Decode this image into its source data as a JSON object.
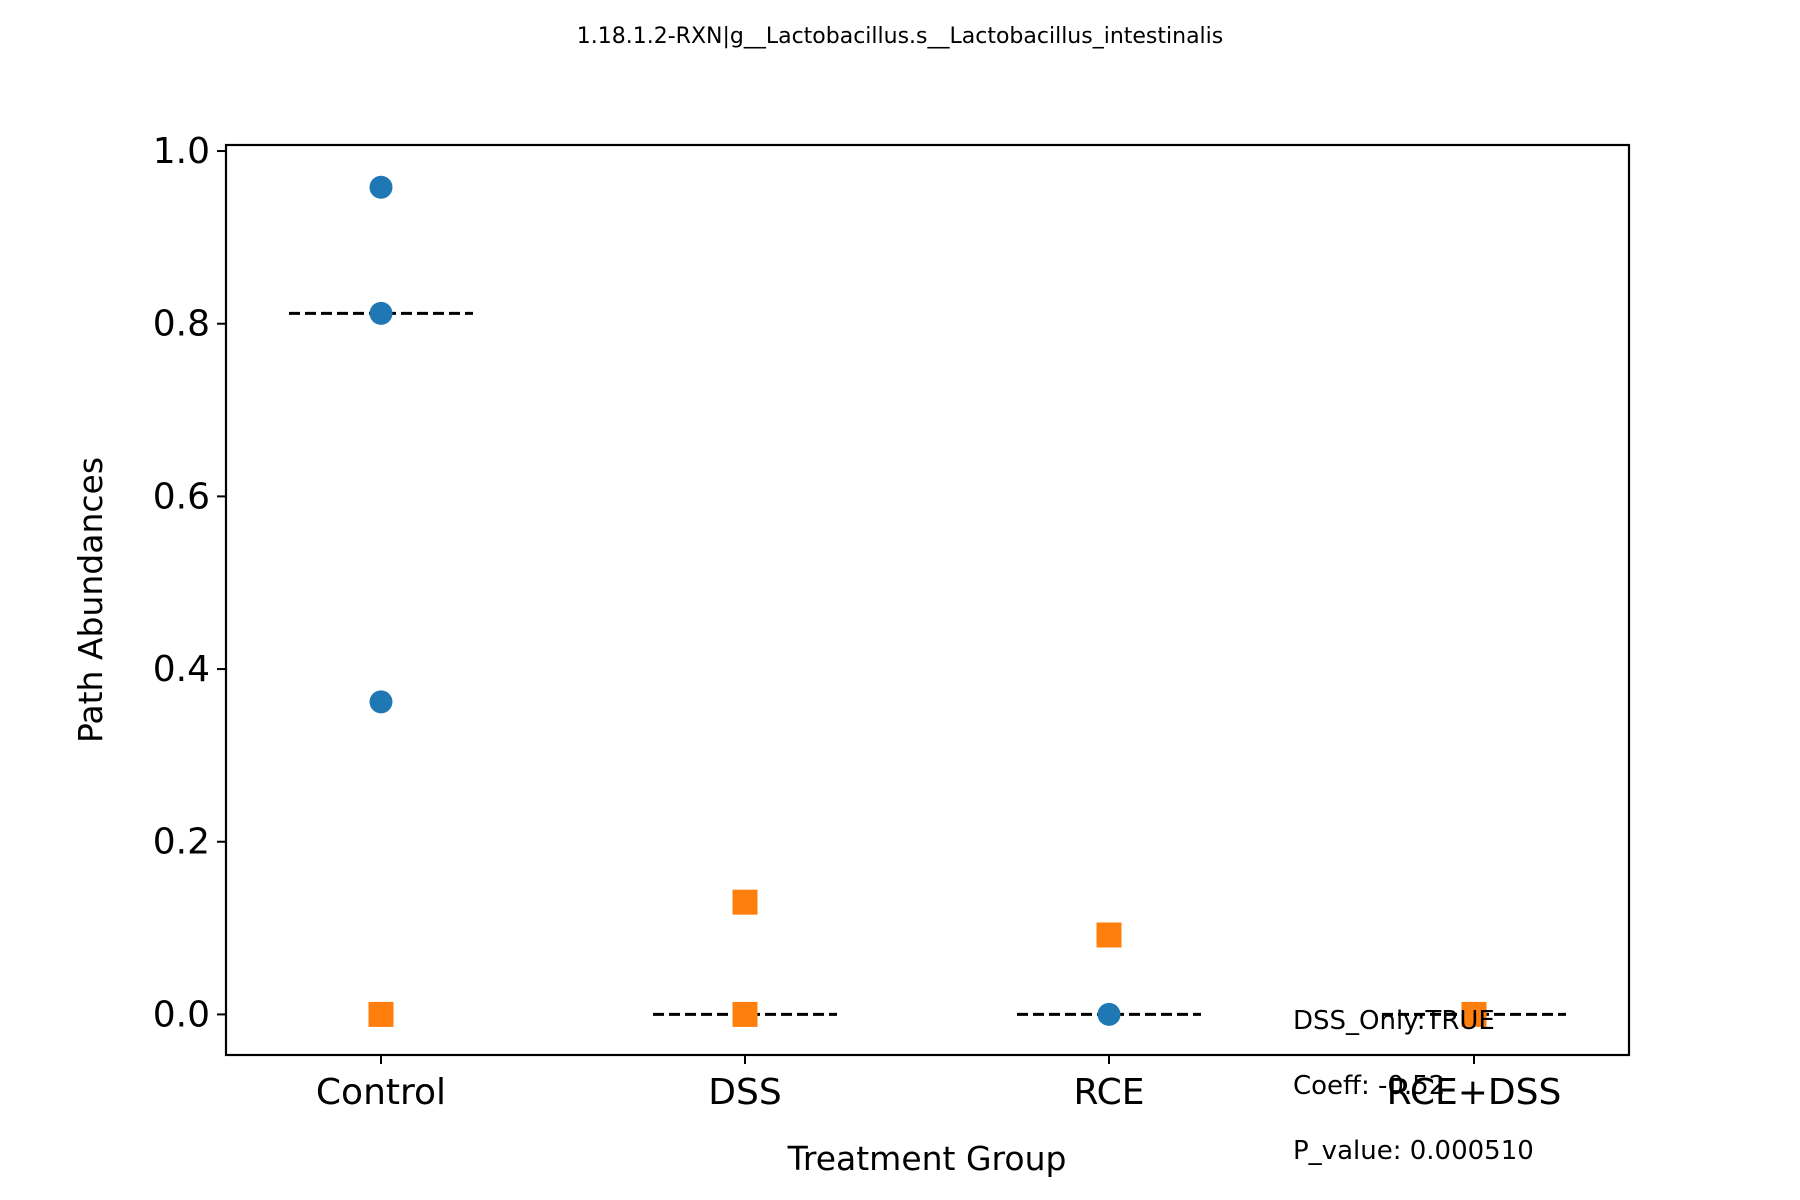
{
  "chart_data": {
    "type": "scatter",
    "title": "1.18.1.2-RXN|g__Lactobacillus.s__Lactobacillus_intestinalis",
    "xlabel": "Treatment Group",
    "ylabel": "Path Abundances",
    "categories": [
      "Control",
      "DSS",
      "RCE",
      "RCE+DSS"
    ],
    "ylim": [
      -0.047,
      1.007
    ],
    "yticks": [
      "0.0",
      "0.2",
      "0.4",
      "0.6",
      "0.8",
      "1.0"
    ],
    "grid": false,
    "series": [
      {
        "marker": "circle",
        "color": "#1f77b4",
        "points": [
          {
            "category": "Control",
            "y": 0.958
          },
          {
            "category": "Control",
            "y": 0.812
          },
          {
            "category": "Control",
            "y": 0.362
          },
          {
            "category": "RCE",
            "y": 0.0
          }
        ]
      },
      {
        "marker": "square",
        "color": "#ff7f0e",
        "points": [
          {
            "category": "Control",
            "y": 0.0
          },
          {
            "category": "DSS",
            "y": 0.13
          },
          {
            "category": "DSS",
            "y": 0.0
          },
          {
            "category": "RCE",
            "y": 0.092
          },
          {
            "category": "RCE+DSS",
            "y": 0.0
          }
        ]
      }
    ],
    "medians": [
      {
        "category": "Control",
        "y": 0.812
      },
      {
        "category": "DSS",
        "y": 0.0
      },
      {
        "category": "RCE",
        "y": 0.0
      },
      {
        "category": "RCE+DSS",
        "y": 0.0
      }
    ],
    "annotations": [
      "DSS_Only:TRUE",
      "Coeff: -0.52",
      "P_value: 0.000510"
    ]
  }
}
